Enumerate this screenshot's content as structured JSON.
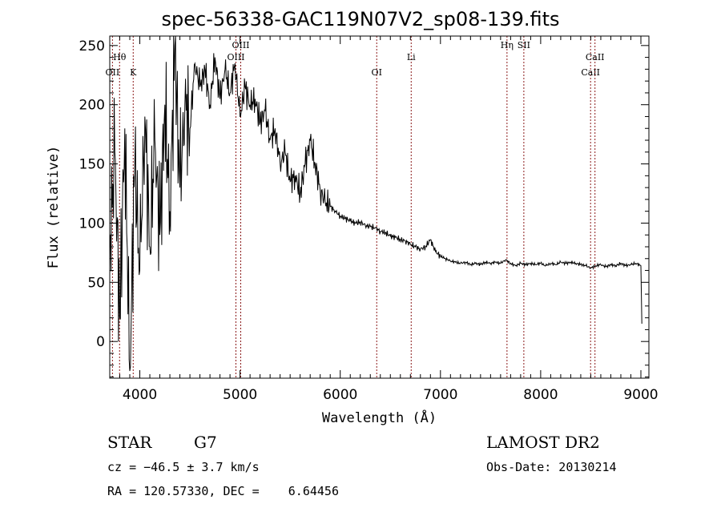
{
  "chart_data": {
    "type": "line",
    "title": "spec-56338-GAC119N07V2_sp08-139.fits",
    "xlabel": "Wavelength (Å)",
    "ylabel": "Flux (relative)",
    "xlim": [
      3700,
      9080
    ],
    "ylim": [
      -31,
      258
    ],
    "xticks": [
      4000,
      5000,
      6000,
      7000,
      8000,
      9000
    ],
    "xtick_labels": [
      "4000",
      "5000",
      "6000",
      "7000",
      "8000",
      "9000"
    ],
    "yticks": [
      0,
      50,
      100,
      150,
      200,
      250
    ],
    "ytick_labels": [
      "0",
      "50",
      "100",
      "150",
      "200",
      "250"
    ],
    "grid": false,
    "line_color": "#000000",
    "marker_color": "#8b1a1a",
    "series": [
      {
        "name": "spectrum",
        "x": [
          3700,
          3750,
          3800,
          3850,
          3900,
          3950,
          4000,
          4050,
          4100,
          4150,
          4200,
          4250,
          4300,
          4350,
          4400,
          4450,
          4500,
          4550,
          4600,
          4650,
          4700,
          4750,
          4800,
          4850,
          4900,
          4950,
          5000,
          5050,
          5100,
          5150,
          5200,
          5250,
          5300,
          5350,
          5400,
          5450,
          5500,
          5550,
          5600,
          5650,
          5700,
          5750,
          5800,
          5850,
          5900,
          5950,
          6000,
          6050,
          6100,
          6150,
          6200,
          6250,
          6300,
          6350,
          6400,
          6450,
          6500,
          6550,
          6600,
          6650,
          6700,
          6750,
          6800,
          6850,
          6900,
          6950,
          7000,
          7050,
          7100,
          7150,
          7200,
          7250,
          7300,
          7350,
          7400,
          7450,
          7500,
          7550,
          7600,
          7650,
          7700,
          7750,
          7800,
          7850,
          7900,
          7950,
          8000,
          8050,
          8100,
          8150,
          8200,
          8250,
          8300,
          8350,
          8400,
          8450,
          8500,
          8550,
          8600,
          8650,
          8700,
          8750,
          8800,
          8850,
          8900,
          8950,
          9000,
          9010
        ],
        "y": [
          80,
          160,
          20,
          180,
          -25,
          150,
          60,
          190,
          80,
          170,
          90,
          200,
          110,
          250,
          130,
          200,
          180,
          235,
          215,
          230,
          200,
          240,
          205,
          230,
          210,
          235,
          190,
          215,
          200,
          205,
          185,
          195,
          170,
          180,
          150,
          160,
          135,
          140,
          125,
          150,
          170,
          150,
          128,
          118,
          114,
          110,
          106,
          104,
          102,
          100,
          101,
          98,
          97,
          96,
          93,
          92,
          89,
          88,
          86,
          85,
          82,
          80,
          78,
          80,
          86,
          76,
          72,
          70,
          68,
          67,
          66,
          67,
          65,
          66,
          65,
          67,
          66,
          67,
          66,
          69,
          66,
          64,
          66,
          65,
          66,
          65,
          66,
          64,
          66,
          65,
          67,
          66,
          67,
          66,
          65,
          64,
          62,
          64,
          65,
          63,
          65,
          64,
          66,
          64,
          65,
          66,
          64,
          15
        ]
      }
    ],
    "lines": [
      {
        "label": "OII",
        "wavelength": 3727,
        "row": 3
      },
      {
        "label": "Hθ",
        "wavelength": 3798,
        "row": 2
      },
      {
        "label": "K",
        "wavelength": 3934,
        "row": 3
      },
      {
        "label": "OIII",
        "wavelength": 4959,
        "row": 2
      },
      {
        "label": "OIII",
        "wavelength": 5007,
        "row": 1
      },
      {
        "label": "OI",
        "wavelength": 6364,
        "row": 3
      },
      {
        "label": "Li",
        "wavelength": 6708,
        "row": 2
      },
      {
        "label": "Hη",
        "wavelength": 7664,
        "row": 1
      },
      {
        "label": "SII",
        "wavelength": 7832,
        "row": 1
      },
      {
        "label": "CaII",
        "wavelength": 8498,
        "row": 3
      },
      {
        "label": "CaII",
        "wavelength": 8542,
        "row": 2
      }
    ]
  },
  "info": {
    "object_class": "STAR",
    "subclass": "G7",
    "survey": "LAMOST DR2",
    "cz": "cz = −46.5 ± 3.7 km/s",
    "obs_date": "Obs-Date: 20130214",
    "coords": "RA = 120.57330, DEC =    6.64456"
  }
}
